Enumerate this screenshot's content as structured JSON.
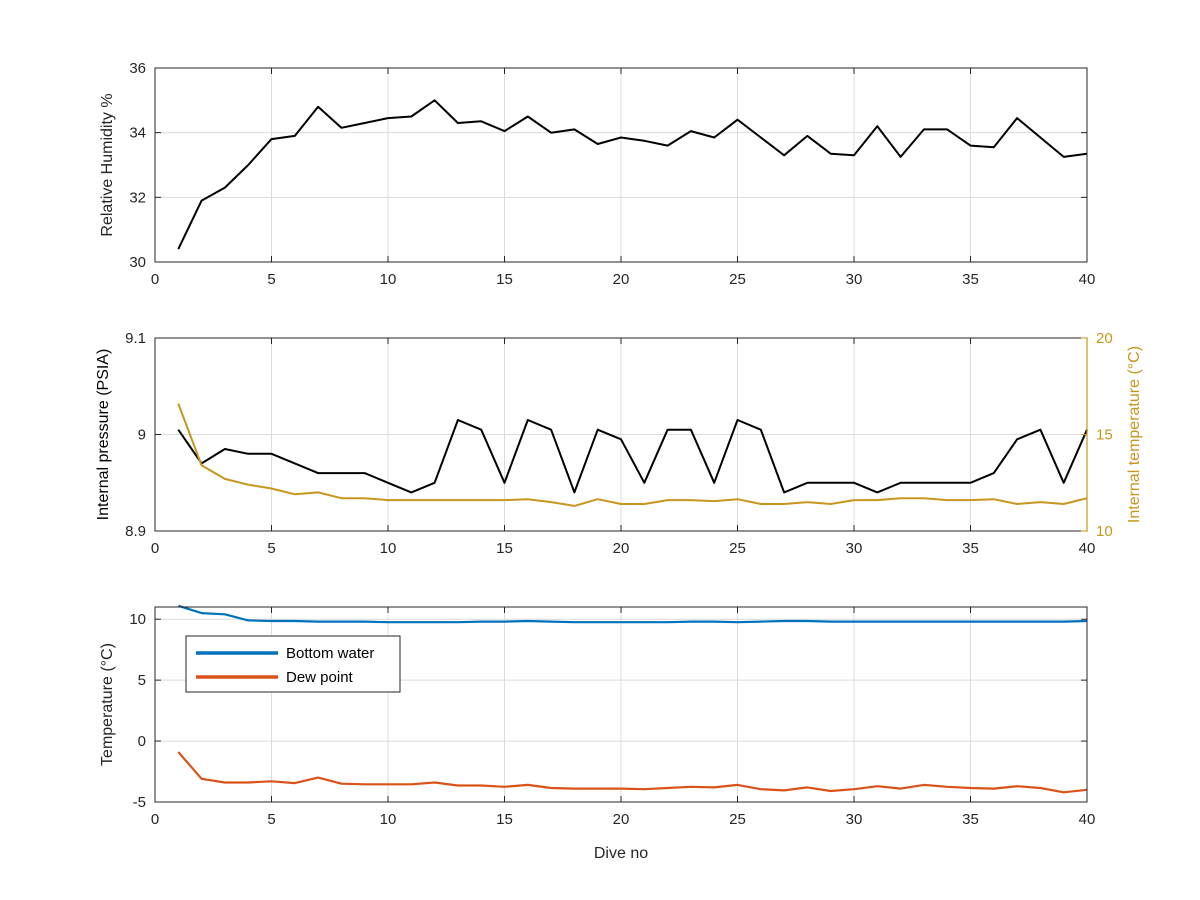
{
  "chart_data": [
    {
      "type": "line",
      "title": "",
      "xlabel": "",
      "ylabel": "Relative Humidity %",
      "xlim": [
        0,
        40
      ],
      "ylim": [
        30,
        36
      ],
      "xticks": [
        0,
        5,
        10,
        15,
        20,
        25,
        30,
        35,
        40
      ],
      "yticks": [
        30,
        32,
        34,
        36
      ],
      "grid": true,
      "series": [
        {
          "color": "#000000",
          "x": [
            1,
            2,
            3,
            4,
            5,
            6,
            7,
            8,
            9,
            10,
            11,
            12,
            13,
            14,
            15,
            16,
            17,
            18,
            19,
            20,
            21,
            22,
            23,
            24,
            25,
            26,
            27,
            28,
            29,
            30,
            31,
            32,
            33,
            34,
            35,
            36,
            37,
            38,
            39,
            40
          ],
          "values": [
            30.4,
            31.9,
            32.3,
            33.0,
            33.8,
            33.9,
            34.8,
            34.15,
            34.3,
            34.45,
            34.5,
            35.0,
            34.3,
            34.35,
            34.05,
            34.5,
            34.0,
            34.1,
            33.65,
            33.85,
            33.75,
            33.6,
            34.05,
            33.85,
            34.4,
            33.85,
            33.3,
            33.9,
            33.35,
            33.3,
            34.2,
            33.25,
            34.1,
            34.1,
            33.6,
            33.55,
            34.45,
            33.85,
            33.25,
            33.35
          ]
        }
      ]
    },
    {
      "type": "line",
      "title": "",
      "xlabel": "",
      "ylabel": "Internal pressure (PSIA)",
      "y2label": "Internal temperature (°C)",
      "xlim": [
        0,
        40
      ],
      "ylim": [
        8.9,
        9.1
      ],
      "y2lim": [
        10,
        20
      ],
      "xticks": [
        0,
        5,
        10,
        15,
        20,
        25,
        30,
        35,
        40
      ],
      "yticks": [
        8.9,
        9,
        9.1
      ],
      "yticklabels": [
        "8.9",
        "9",
        "9.1"
      ],
      "y2ticks": [
        10,
        15,
        20
      ],
      "grid": true,
      "series": [
        {
          "axis": "left",
          "color": "#000000",
          "x": [
            1,
            2,
            3,
            4,
            5,
            6,
            7,
            8,
            9,
            10,
            11,
            12,
            13,
            14,
            15,
            16,
            17,
            18,
            19,
            20,
            21,
            22,
            23,
            24,
            25,
            26,
            27,
            28,
            29,
            30,
            31,
            32,
            33,
            34,
            35,
            36,
            37,
            38,
            39,
            40
          ],
          "values": [
            9.005,
            8.97,
            8.985,
            8.98,
            8.98,
            8.97,
            8.96,
            8.96,
            8.96,
            8.95,
            8.94,
            8.95,
            9.015,
            9.005,
            8.95,
            9.015,
            9.005,
            8.94,
            9.005,
            8.995,
            8.95,
            9.005,
            9.005,
            8.95,
            9.015,
            9.005,
            8.94,
            8.95,
            8.95,
            8.95,
            8.94,
            8.95,
            8.95,
            8.95,
            8.95,
            8.96,
            8.995,
            9.005,
            8.95,
            9.005
          ]
        },
        {
          "axis": "right",
          "color": "#C8961E",
          "x": [
            1,
            2,
            3,
            4,
            5,
            6,
            7,
            8,
            9,
            10,
            11,
            12,
            13,
            14,
            15,
            16,
            17,
            18,
            19,
            20,
            21,
            22,
            23,
            24,
            25,
            26,
            27,
            28,
            29,
            30,
            31,
            32,
            33,
            34,
            35,
            36,
            37,
            38,
            39,
            40
          ],
          "values": [
            16.6,
            13.4,
            12.7,
            12.4,
            12.2,
            11.9,
            12.0,
            11.7,
            11.7,
            11.6,
            11.6,
            11.6,
            11.6,
            11.6,
            11.6,
            11.65,
            11.5,
            11.3,
            11.65,
            11.4,
            11.4,
            11.6,
            11.6,
            11.55,
            11.65,
            11.4,
            11.4,
            11.5,
            11.4,
            11.6,
            11.6,
            11.7,
            11.7,
            11.6,
            11.6,
            11.65,
            11.4,
            11.5,
            11.4,
            11.7
          ]
        }
      ]
    },
    {
      "type": "line",
      "title": "",
      "xlabel": "Dive no",
      "ylabel": "Temperature (°C)",
      "xlim": [
        0,
        40
      ],
      "ylim": [
        -5,
        11
      ],
      "xticks": [
        0,
        5,
        10,
        15,
        20,
        25,
        30,
        35,
        40
      ],
      "yticks": [
        -5,
        0,
        5,
        10
      ],
      "grid": true,
      "legend": "upper-left",
      "series": [
        {
          "name": "Bottom water",
          "color": "#0072BD",
          "x": [
            1,
            2,
            3,
            4,
            5,
            6,
            7,
            8,
            9,
            10,
            11,
            12,
            13,
            14,
            15,
            16,
            17,
            18,
            19,
            20,
            21,
            22,
            23,
            24,
            25,
            26,
            27,
            28,
            29,
            30,
            31,
            32,
            33,
            34,
            35,
            36,
            37,
            38,
            39,
            40
          ],
          "values": [
            11.1,
            10.5,
            10.4,
            9.9,
            9.85,
            9.85,
            9.8,
            9.8,
            9.8,
            9.75,
            9.75,
            9.75,
            9.75,
            9.8,
            9.8,
            9.85,
            9.8,
            9.75,
            9.75,
            9.75,
            9.75,
            9.75,
            9.8,
            9.8,
            9.75,
            9.8,
            9.85,
            9.85,
            9.8,
            9.8,
            9.8,
            9.8,
            9.8,
            9.8,
            9.8,
            9.8,
            9.8,
            9.8,
            9.8,
            9.85
          ]
        },
        {
          "name": "Dew point",
          "color": "#D95319",
          "x": [
            1,
            2,
            3,
            4,
            5,
            6,
            7,
            8,
            9,
            10,
            11,
            12,
            13,
            14,
            15,
            16,
            17,
            18,
            19,
            20,
            21,
            22,
            23,
            24,
            25,
            26,
            27,
            28,
            29,
            30,
            31,
            32,
            33,
            34,
            35,
            36,
            37,
            38,
            39,
            40
          ],
          "values": [
            -0.9,
            -3.1,
            -3.4,
            -3.4,
            -3.3,
            -3.45,
            -3.0,
            -3.5,
            -3.55,
            -3.55,
            -3.55,
            -3.4,
            -3.65,
            -3.65,
            -3.75,
            -3.6,
            -3.85,
            -3.9,
            -3.9,
            -3.9,
            -3.95,
            -3.85,
            -3.75,
            -3.8,
            -3.6,
            -3.95,
            -4.05,
            -3.8,
            -4.1,
            -3.95,
            -3.7,
            -3.9,
            -3.6,
            -3.75,
            -3.85,
            -3.9,
            -3.7,
            -3.85,
            -4.2,
            -4.0
          ]
        }
      ]
    }
  ]
}
